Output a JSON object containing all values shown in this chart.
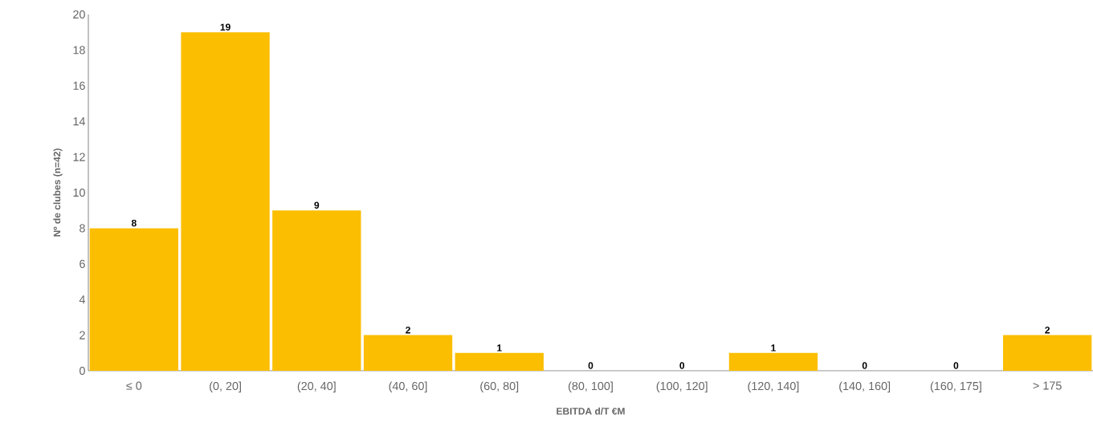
{
  "chart_data": {
    "type": "bar",
    "xlabel": "EBITDA d/T €M",
    "ylabel": "Nº de clubes (n=42)",
    "categories": [
      "≤ 0",
      "(0, 20]",
      "(20, 40]",
      "(40, 60]",
      "(60, 80]",
      "(80, 100]",
      "(100, 120]",
      "(120, 140]",
      "(140, 160]",
      "(160, 175]",
      "> 175"
    ],
    "values": [
      8,
      19,
      9,
      2,
      1,
      0,
      0,
      1,
      0,
      0,
      2
    ],
    "color": "#fbbe00",
    "ylim": [
      0,
      20
    ],
    "yticks": [
      0,
      2,
      4,
      6,
      8,
      10,
      12,
      14,
      16,
      18,
      20
    ],
    "data_labels": true
  }
}
